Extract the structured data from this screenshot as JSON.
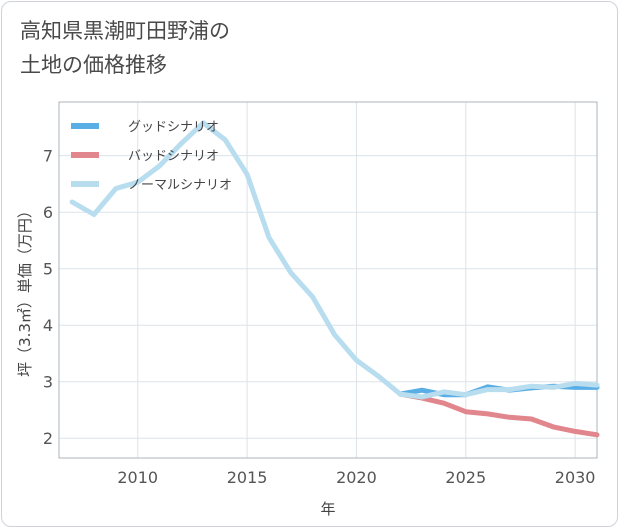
{
  "title_line1": "高知県黒潮町田野浦の",
  "title_line2": "土地の価格推移",
  "chart_data": {
    "type": "line",
    "title": "高知県黒潮町田野浦の土地の価格推移",
    "xlabel": "年",
    "ylabel": "坪（3.3㎡）単価（万円）",
    "xlim": [
      2006.4,
      2031.0
    ],
    "ylim": [
      1.65,
      7.95
    ],
    "xticks": [
      2010,
      2015,
      2020,
      2025,
      2030
    ],
    "yticks": [
      2,
      3,
      4,
      5,
      6,
      7
    ],
    "legend_position": "top-left",
    "series": [
      {
        "name": "グッドシナリオ",
        "color": "#5aaee6",
        "x": [
          2022,
          2023,
          2024,
          2025,
          2026,
          2027,
          2028,
          2029,
          2030,
          2031
        ],
        "values": [
          2.78,
          2.85,
          2.77,
          2.77,
          2.91,
          2.85,
          2.89,
          2.92,
          2.9,
          2.9
        ]
      },
      {
        "name": "バッドシナリオ",
        "color": "#e0868c",
        "x": [
          2022,
          2023,
          2024,
          2025,
          2026,
          2027,
          2028,
          2029,
          2030,
          2031
        ],
        "values": [
          2.78,
          2.71,
          2.62,
          2.47,
          2.43,
          2.37,
          2.34,
          2.2,
          2.12,
          2.06
        ]
      },
      {
        "name": "ノーマルシナリオ",
        "color": "#b7ddef",
        "x": [
          2007,
          2008,
          2009,
          2010,
          2011,
          2012,
          2013,
          2014,
          2015,
          2016,
          2017,
          2018,
          2019,
          2020,
          2021,
          2022,
          2023,
          2024,
          2025,
          2026,
          2027,
          2028,
          2029,
          2030,
          2031
        ],
        "values": [
          6.18,
          5.96,
          6.42,
          6.53,
          6.82,
          7.22,
          7.58,
          7.28,
          6.67,
          5.55,
          4.93,
          4.5,
          3.83,
          3.38,
          3.1,
          2.78,
          2.73,
          2.82,
          2.77,
          2.86,
          2.86,
          2.92,
          2.9,
          2.97,
          2.94
        ]
      }
    ]
  }
}
